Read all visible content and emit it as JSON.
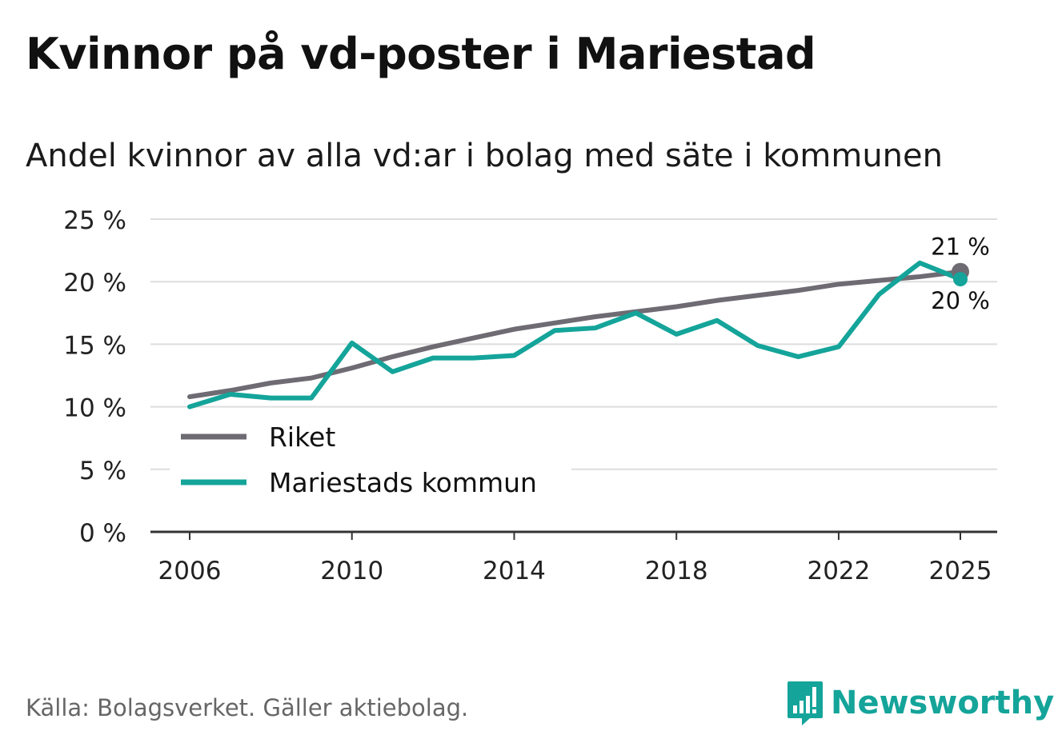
{
  "title": "Kvinnor på vd-poster i Mariestad",
  "subtitle": "Andel kvinnor av alla vd:ar i bolag med säte i kommunen",
  "source": "Källa: Bolagsverket. Gäller aktiebolag.",
  "brand": "Newsworthy",
  "colors": {
    "riket": "#6e6b73",
    "kommun": "#14a49a",
    "grid": "#dddddd",
    "axis": "#333333"
  },
  "chart_data": {
    "type": "line",
    "title": "Kvinnor på vd-poster i Mariestad",
    "subtitle": "Andel kvinnor av alla vd:ar i bolag med säte i kommunen",
    "xlabel": "",
    "ylabel": "",
    "xlim": [
      2006,
      2025
    ],
    "ylim": [
      0,
      25
    ],
    "grid": true,
    "legend_position": "bottom-left",
    "x_ticks": [
      2006,
      2010,
      2014,
      2018,
      2022,
      2025
    ],
    "x_tick_labels": [
      "2006",
      "2010",
      "2014",
      "2018",
      "2022",
      "2025"
    ],
    "y_ticks": [
      0,
      5,
      10,
      15,
      20,
      25
    ],
    "y_tick_labels": [
      "0 %",
      "5 %",
      "10 %",
      "15 %",
      "20 %",
      "25 %"
    ],
    "x": [
      2006,
      2007,
      2008,
      2009,
      2010,
      2011,
      2012,
      2013,
      2014,
      2015,
      2016,
      2017,
      2018,
      2019,
      2020,
      2021,
      2022,
      2023,
      2024,
      2025
    ],
    "series": [
      {
        "name": "Riket",
        "key": "riket",
        "values": [
          10.8,
          11.3,
          11.9,
          12.3,
          13.1,
          14.0,
          14.8,
          15.5,
          16.2,
          16.7,
          17.2,
          17.6,
          18.0,
          18.5,
          18.9,
          19.3,
          19.8,
          20.1,
          20.4,
          20.8
        ],
        "end_label": "21 %"
      },
      {
        "name": "Mariestads kommun",
        "key": "kommun",
        "values": [
          10.0,
          11.0,
          10.7,
          10.7,
          15.1,
          12.8,
          13.9,
          13.9,
          14.1,
          16.1,
          16.3,
          17.5,
          15.8,
          16.9,
          14.9,
          14.0,
          14.8,
          19.0,
          21.5,
          20.2
        ],
        "end_label": "20 %"
      }
    ]
  }
}
